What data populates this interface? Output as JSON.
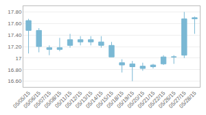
{
  "chart_data": {
    "type": "candlestick",
    "categories": [
      "05/05/15",
      "05/06/15",
      "05/07/15",
      "05/08/15",
      "05/11/15",
      "05/12/15",
      "05/13/15",
      "05/14/15",
      "05/15/15",
      "05/18/15",
      "05/19/15",
      "05/20/15",
      "05/21/15",
      "05/22/15",
      "05/26/15",
      "05/27/15",
      "05/28/15"
    ],
    "open": [
      17.48,
      17.48,
      17.18,
      17.15,
      17.22,
      17.28,
      17.32,
      17.28,
      17.22,
      16.92,
      16.85,
      16.82,
      16.85,
      16.9,
      17.02,
      17.05,
      17.68
    ],
    "high": [
      17.68,
      17.52,
      17.22,
      17.35,
      17.42,
      17.38,
      17.38,
      17.38,
      17.28,
      16.98,
      16.95,
      16.92,
      16.9,
      17.05,
      17.05,
      17.8,
      17.72
    ],
    "low": [
      17.08,
      17.1,
      17.05,
      17.12,
      17.18,
      17.22,
      17.22,
      17.18,
      17.02,
      16.75,
      16.6,
      16.78,
      16.82,
      16.88,
      16.9,
      17.0,
      17.42
    ],
    "close": [
      17.65,
      17.2,
      17.15,
      17.18,
      17.32,
      17.32,
      17.28,
      17.22,
      17.02,
      16.88,
      16.9,
      16.86,
      16.88,
      17.02,
      17.02,
      17.68,
      17.7
    ],
    "color": "#7ab8d4",
    "ylim": [
      16.5,
      17.9
    ],
    "yticks": [
      {
        "value": 16.6,
        "label": "16.60"
      },
      {
        "value": 16.8,
        "label": "16.80"
      },
      17,
      {
        "value": 17.2,
        "label": "17.20"
      },
      {
        "value": 17.4,
        "label": "17.40"
      },
      {
        "value": 17.6,
        "label": "17.60"
      },
      {
        "value": 17.8,
        "label": "17.80"
      }
    ],
    "grid": true
  }
}
